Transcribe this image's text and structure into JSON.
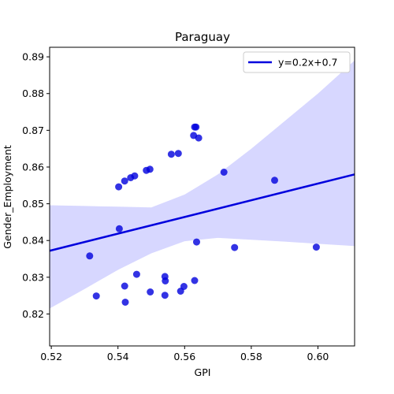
{
  "chart_data": {
    "type": "scatter",
    "title": "Paraguay",
    "xlabel": "GPI",
    "ylabel": "Gender_Employment",
    "xlim": [
      0.5195,
      0.611
    ],
    "ylim": [
      0.8113,
      0.8926
    ],
    "xticks": [
      "0.52",
      "0.54",
      "0.56",
      "0.58",
      "0.60"
    ],
    "xtick_values": [
      0.52,
      0.54,
      0.56,
      0.58,
      0.6
    ],
    "yticks": [
      "0.82",
      "0.83",
      "0.84",
      "0.85",
      "0.86",
      "0.87",
      "0.88",
      "0.89"
    ],
    "ytick_values": [
      0.82,
      0.83,
      0.84,
      0.85,
      0.86,
      0.87,
      0.88,
      0.89
    ],
    "grid": false,
    "legend": {
      "position": "top-right",
      "entries": [
        "y=0.2x+0.7"
      ]
    },
    "colors": {
      "points": "#0000dd",
      "line": "#0000dd",
      "band": "#d7d7ff"
    },
    "points": [
      {
        "x": 0.5315,
        "y": 0.8358
      },
      {
        "x": 0.5335,
        "y": 0.8249
      },
      {
        "x": 0.5402,
        "y": 0.8546
      },
      {
        "x": 0.5404,
        "y": 0.8432
      },
      {
        "x": 0.542,
        "y": 0.8562
      },
      {
        "x": 0.542,
        "y": 0.8276
      },
      {
        "x": 0.5422,
        "y": 0.8232
      },
      {
        "x": 0.5438,
        "y": 0.8571
      },
      {
        "x": 0.545,
        "y": 0.8576
      },
      {
        "x": 0.5456,
        "y": 0.8308
      },
      {
        "x": 0.5485,
        "y": 0.8591
      },
      {
        "x": 0.5496,
        "y": 0.8594
      },
      {
        "x": 0.5497,
        "y": 0.826
      },
      {
        "x": 0.5541,
        "y": 0.8302
      },
      {
        "x": 0.5542,
        "y": 0.829
      },
      {
        "x": 0.5541,
        "y": 0.8251
      },
      {
        "x": 0.556,
        "y": 0.8635
      },
      {
        "x": 0.5581,
        "y": 0.8637
      },
      {
        "x": 0.5588,
        "y": 0.8262
      },
      {
        "x": 0.5598,
        "y": 0.8275
      },
      {
        "x": 0.5627,
        "y": 0.8686
      },
      {
        "x": 0.563,
        "y": 0.8709
      },
      {
        "x": 0.5634,
        "y": 0.8709
      },
      {
        "x": 0.563,
        "y": 0.8291
      },
      {
        "x": 0.5636,
        "y": 0.8396
      },
      {
        "x": 0.5642,
        "y": 0.8679
      },
      {
        "x": 0.5718,
        "y": 0.8586
      },
      {
        "x": 0.575,
        "y": 0.8381
      },
      {
        "x": 0.587,
        "y": 0.8564
      },
      {
        "x": 0.5995,
        "y": 0.8382
      }
    ],
    "regression": {
      "slope": 0.2,
      "intercept": 0.7,
      "x_start": 0.5195,
      "y_start": 0.8372,
      "x_end": 0.611,
      "y_end": 0.858
    },
    "confidence_band": {
      "x": [
        0.5195,
        0.53,
        0.54,
        0.55,
        0.56,
        0.57,
        0.58,
        0.59,
        0.6,
        0.611
      ],
      "upper": [
        0.8496,
        0.8494,
        0.8492,
        0.849,
        0.8525,
        0.858,
        0.865,
        0.8725,
        0.88,
        0.889
      ],
      "lower": [
        0.8215,
        0.8268,
        0.832,
        0.8365,
        0.8398,
        0.8407,
        0.8402,
        0.8397,
        0.8391,
        0.8385
      ]
    }
  }
}
